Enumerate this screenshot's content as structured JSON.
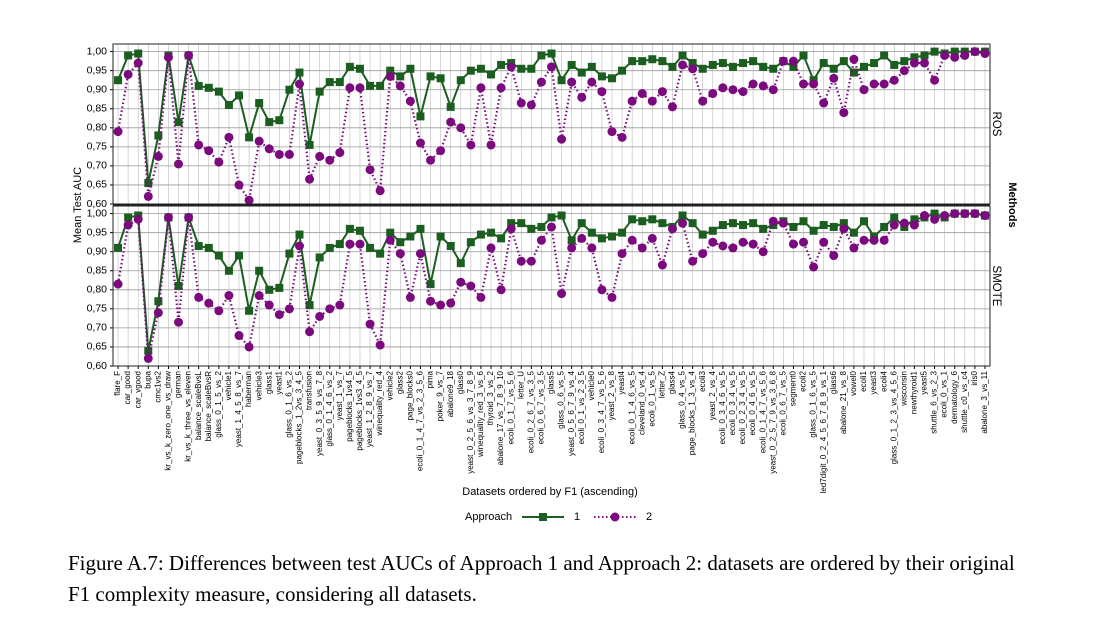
{
  "chart_data": {
    "type": "line",
    "y_label": "Mean Test AUC",
    "x_label": "Datasets ordered by F1 (ascending)",
    "facet_title": "Methods",
    "legend_title": "Approach",
    "grid": true,
    "ylim": [
      0.6,
      1.02
    ],
    "yticks": [
      {
        "value": 0.6,
        "label": "0,60"
      },
      {
        "value": 0.65,
        "label": "0,65"
      },
      {
        "value": 0.7,
        "label": "0,70"
      },
      {
        "value": 0.75,
        "label": "0,75"
      },
      {
        "value": 0.8,
        "label": "0,80"
      },
      {
        "value": 0.85,
        "label": "0,85"
      },
      {
        "value": 0.9,
        "label": "0,90"
      },
      {
        "value": 0.95,
        "label": "0,95"
      },
      {
        "value": 1.0,
        "label": "1,00"
      }
    ],
    "categories": [
      "flare_F",
      "car_good",
      "car_vgood",
      "bupa",
      "cmc1vs2",
      "kr_vs_k_zero_one_vs_draw",
      "german",
      "kr_vs_k_three_vs_eleven",
      "balance_scaleBvsL",
      "balance_scaleBvsR",
      "glass_0_1_5_vs_2",
      "vehicle1",
      "yeast_1_4_5_8_vs_7",
      "haberman",
      "vehicle3",
      "glass1",
      "yeast1",
      "glass_0_1_6_vs_2",
      "pageblocks_1_2vs_3_4_5",
      "transfusion",
      "yeast_0_3_5_9_vs_7_8",
      "glass_0_1_4_6_vs_2",
      "yeast_1_vs_7",
      "pageblocks_1vs4_5",
      "pageblocks_1vs3_4_5",
      "yeast_1_2_8_9_vs_7",
      "winequality_red_4",
      "vehicle2",
      "glass2",
      "page_blocks0",
      "ecoli_0_1_4_7_vs_2_3_5_6",
      "pima",
      "poker_9_vs_7",
      "abalone9_18",
      "glass0",
      "yeast_0_2_5_6_vs_3_7_8_9",
      "winequality_red_3_vs_6",
      "thyroid_3_vs_2",
      "abalone_17_vs_7_8_9_10",
      "ecoli_0_1_7_vs_5_6",
      "letter_U",
      "ecoli_0_2_6_7_vs_3_5",
      "ecoli_0_6_7_vs_3_5",
      "glass5",
      "glass_0_6_vs_5",
      "yeast_0_5_6_7_9_vs_4",
      "ecoli_0_1_vs_2_3_5",
      "vehicle0",
      "ecoli_0_3_4_7_vs_5_6",
      "yeast_2_vs_8",
      "yeast4",
      "ecoli_0_1_4_6_vs_5",
      "cleveland_0_vs_4",
      "ecoli_0_1_vs_5",
      "letter_Z",
      "glass4",
      "glass_0_4_vs_5",
      "page_blocks_1_3_vs_4",
      "ecoli3",
      "yeast_2_vs_4",
      "ecoli_0_3_4_6_vs_5",
      "ecoli_0_3_4_vs_5",
      "ecoli_0_2_3_4_vs_5",
      "ecoli_0_4_6_vs_5",
      "ecoli_0_1_4_7_vs_5_6",
      "yeast_0_2_5_7_9_vs_3_6_8",
      "ecoli_0_6_7_vs_5",
      "segment0",
      "ecoli2",
      "glass_0_1_6_vs_5",
      "led7digit_0_2_4_5_6_7_8_9_vs_1",
      "glass6",
      "abalone_21_vs_8",
      "vowel0",
      "ecoli1",
      "yeast3",
      "ecoli4",
      "glass_0_1_2_3_vs_4_5_6",
      "wisconsin",
      "newthyroid1",
      "yeast5",
      "shuttle_6_vs_2_3",
      "ecoli_0_vs_1",
      "dermatology_6",
      "shuttle_c0_vs_c4",
      "iris0",
      "abalone_3_vs_11"
    ],
    "panels": [
      {
        "label": "ROS",
        "series": [
          {
            "name": "1",
            "color": "#1b5e20",
            "values": [
              0.925,
              0.99,
              0.995,
              0.655,
              0.78,
              0.99,
              0.815,
              0.99,
              0.91,
              0.905,
              0.895,
              0.86,
              0.885,
              0.775,
              0.865,
              0.815,
              0.82,
              0.9,
              0.945,
              0.755,
              0.895,
              0.92,
              0.92,
              0.96,
              0.955,
              0.91,
              0.91,
              0.95,
              0.935,
              0.955,
              0.83,
              0.935,
              0.93,
              0.855,
              0.925,
              0.95,
              0.955,
              0.94,
              0.965,
              0.97,
              0.955,
              0.955,
              0.99,
              0.995,
              0.925,
              0.965,
              0.945,
              0.96,
              0.935,
              0.93,
              0.95,
              0.975,
              0.975,
              0.98,
              0.975,
              0.96,
              0.99,
              0.97,
              0.955,
              0.965,
              0.97,
              0.96,
              0.97,
              0.975,
              0.96,
              0.955,
              0.975,
              0.96,
              0.99,
              0.925,
              0.97,
              0.955,
              0.975,
              0.945,
              0.96,
              0.97,
              0.99,
              0.965,
              0.975,
              0.985,
              0.99,
              1.0,
              0.995,
              1.0,
              1.0,
              1.0,
              1.0
            ]
          },
          {
            "name": "2",
            "color": "#7b0a7e",
            "values": [
              0.79,
              0.94,
              0.97,
              0.62,
              0.725,
              0.985,
              0.705,
              0.99,
              0.755,
              0.74,
              0.71,
              0.775,
              0.65,
              0.61,
              0.765,
              0.745,
              0.73,
              0.73,
              0.915,
              0.665,
              0.725,
              0.715,
              0.735,
              0.905,
              0.905,
              0.69,
              0.635,
              0.935,
              0.91,
              0.87,
              0.76,
              0.715,
              0.74,
              0.815,
              0.8,
              0.755,
              0.905,
              0.755,
              0.905,
              0.96,
              0.865,
              0.86,
              0.92,
              0.96,
              0.77,
              0.92,
              0.88,
              0.92,
              0.895,
              0.79,
              0.775,
              0.87,
              0.89,
              0.87,
              0.895,
              0.855,
              0.965,
              0.955,
              0.87,
              0.89,
              0.905,
              0.9,
              0.895,
              0.915,
              0.91,
              0.9,
              0.975,
              0.975,
              0.915,
              0.915,
              0.865,
              0.93,
              0.84,
              0.98,
              0.9,
              0.915,
              0.915,
              0.925,
              0.95,
              0.97,
              0.97,
              0.925,
              0.99,
              0.985,
              0.99,
              1.0,
              0.995
            ]
          }
        ]
      },
      {
        "label": "SMOTE",
        "series": [
          {
            "name": "1",
            "color": "#1b5e20",
            "values": [
              0.91,
              0.99,
              0.995,
              0.64,
              0.77,
              0.99,
              0.81,
              0.99,
              0.915,
              0.91,
              0.89,
              0.85,
              0.89,
              0.745,
              0.85,
              0.8,
              0.805,
              0.895,
              0.945,
              0.76,
              0.885,
              0.91,
              0.92,
              0.96,
              0.955,
              0.91,
              0.895,
              0.95,
              0.925,
              0.94,
              0.96,
              0.815,
              0.94,
              0.915,
              0.87,
              0.925,
              0.945,
              0.95,
              0.935,
              0.975,
              0.975,
              0.96,
              0.965,
              0.99,
              0.995,
              0.93,
              0.975,
              0.95,
              0.935,
              0.94,
              0.95,
              0.985,
              0.98,
              0.985,
              0.975,
              0.965,
              0.995,
              0.975,
              0.945,
              0.955,
              0.97,
              0.975,
              0.97,
              0.975,
              0.96,
              0.97,
              0.98,
              0.965,
              0.98,
              0.955,
              0.97,
              0.965,
              0.975,
              0.95,
              0.98,
              0.94,
              0.965,
              0.99,
              0.965,
              0.985,
              0.99,
              1.0,
              0.99,
              1.0,
              1.0,
              1.0,
              0.995
            ]
          },
          {
            "name": "2",
            "color": "#7b0a7e",
            "values": [
              0.815,
              0.97,
              0.985,
              0.62,
              0.74,
              0.99,
              0.715,
              0.99,
              0.78,
              0.765,
              0.745,
              0.785,
              0.68,
              0.65,
              0.785,
              0.76,
              0.735,
              0.75,
              0.915,
              0.69,
              0.73,
              0.75,
              0.76,
              0.92,
              0.92,
              0.71,
              0.655,
              0.93,
              0.895,
              0.78,
              0.895,
              0.77,
              0.76,
              0.765,
              0.82,
              0.81,
              0.78,
              0.91,
              0.8,
              0.96,
              0.875,
              0.875,
              0.93,
              0.965,
              0.79,
              0.91,
              0.935,
              0.91,
              0.8,
              0.78,
              0.895,
              0.93,
              0.91,
              0.935,
              0.865,
              0.96,
              0.975,
              0.875,
              0.895,
              0.925,
              0.915,
              0.91,
              0.925,
              0.92,
              0.9,
              0.98,
              0.975,
              0.92,
              0.925,
              0.86,
              0.925,
              0.89,
              0.96,
              0.91,
              0.93,
              0.93,
              0.93,
              0.97,
              0.975,
              0.97,
              0.995,
              0.985,
              0.995,
              1.0,
              1.0,
              1.0,
              0.995
            ]
          }
        ]
      }
    ]
  },
  "caption": "Figure A.7: Differences between test AUCs of Approach 1 and Approach 2: datasets are ordered by their original F1 complexity measure, considering all datasets."
}
